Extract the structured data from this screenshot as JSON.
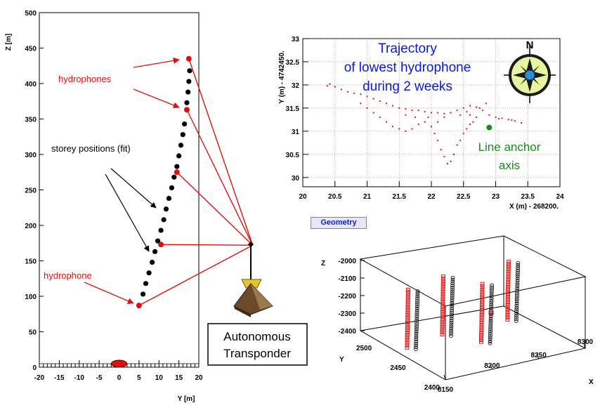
{
  "colors": {
    "red": "#e01010",
    "black": "#000000",
    "blue": "#0a18d8",
    "green": "#1a8a1a",
    "brown": "#6b4a2a"
  },
  "chart_data": [
    {
      "type": "scatter",
      "name": "line-shape",
      "xlabel": "Y [m]",
      "ylabel": "Z [m]",
      "xlim": [
        -20,
        20
      ],
      "ylim": [
        0,
        500
      ],
      "x_ticks": [
        -20,
        -15,
        -10,
        -5,
        0,
        5,
        10,
        15,
        20
      ],
      "y_ticks": [
        0,
        50,
        100,
        150,
        200,
        250,
        300,
        350,
        400,
        450,
        500
      ],
      "storey_positions": [
        [
          6.0,
          103
        ],
        [
          6.7,
          118
        ],
        [
          7.5,
          133
        ],
        [
          8.3,
          148
        ],
        [
          9.0,
          163
        ],
        [
          9.7,
          178
        ],
        [
          10.5,
          193
        ],
        [
          11.2,
          208
        ],
        [
          11.8,
          223
        ],
        [
          12.5,
          238
        ],
        [
          13.2,
          253
        ],
        [
          13.8,
          268
        ],
        [
          14.5,
          283
        ],
        [
          15.0,
          298
        ],
        [
          15.5,
          313
        ],
        [
          16.0,
          328
        ],
        [
          16.4,
          343
        ],
        [
          17.0,
          373
        ],
        [
          17.3,
          388
        ],
        [
          17.5,
          403
        ],
        [
          17.7,
          418
        ]
      ],
      "hydrophones": [
        [
          5,
          87
        ],
        [
          10.5,
          173
        ],
        [
          14.5,
          275
        ],
        [
          17,
          363
        ],
        [
          17.5,
          435
        ]
      ],
      "anchor": {
        "y": 0,
        "z": 5
      },
      "transponder": {
        "y": 33.5,
        "z": 172
      },
      "annotations": {
        "hydrophones_label": "hydrophones",
        "storey_label": "storey positions (fit)",
        "hydrophone_label": "hydrophone"
      },
      "transponder_label": [
        "Autonomous",
        "Transponder"
      ]
    },
    {
      "type": "scatter",
      "name": "trajectory",
      "xlabel": "X (m) - 268200.",
      "ylabel": "Y (m) - 4742450.",
      "xlim": [
        20,
        24
      ],
      "ylim": [
        29.8,
        33
      ],
      "x_ticks": [
        20,
        20.5,
        21,
        21.5,
        22,
        22.5,
        23,
        23.5,
        24
      ],
      "y_ticks": [
        30,
        30.5,
        31,
        31.5,
        32,
        32.5,
        33
      ],
      "title_lines": [
        "Trajectory",
        "of lowest hydrophone",
        "during 2 weeks"
      ],
      "anchor_point": {
        "x": 22.9,
        "y": 31.08
      },
      "anchor_label_lines": [
        "Line anchor",
        "axis"
      ],
      "compass_label": "N",
      "trajectory_points": [
        [
          20.38,
          31.98
        ],
        [
          20.42,
          32.02
        ],
        [
          20.5,
          31.96
        ],
        [
          20.6,
          31.9
        ],
        [
          20.7,
          31.85
        ],
        [
          20.8,
          31.82
        ],
        [
          20.9,
          31.8
        ],
        [
          21.0,
          31.75
        ],
        [
          21.1,
          31.7
        ],
        [
          21.2,
          31.65
        ],
        [
          21.3,
          31.6
        ],
        [
          21.4,
          31.55
        ],
        [
          21.5,
          31.5
        ],
        [
          21.6,
          31.48
        ],
        [
          21.7,
          31.45
        ],
        [
          21.8,
          31.45
        ],
        [
          21.9,
          31.42
        ],
        [
          22.0,
          31.4
        ],
        [
          22.1,
          31.4
        ],
        [
          22.2,
          31.38
        ],
        [
          22.3,
          31.4
        ],
        [
          22.4,
          31.45
        ],
        [
          22.5,
          31.5
        ],
        [
          22.6,
          31.55
        ],
        [
          22.7,
          31.52
        ],
        [
          22.8,
          31.45
        ],
        [
          22.9,
          31.35
        ],
        [
          23.0,
          31.3
        ],
        [
          23.1,
          31.28
        ],
        [
          23.2,
          31.25
        ],
        [
          23.3,
          31.22
        ],
        [
          23.4,
          31.18
        ],
        [
          20.9,
          31.6
        ],
        [
          21.0,
          31.5
        ],
        [
          21.1,
          31.4
        ],
        [
          21.2,
          31.3
        ],
        [
          21.3,
          31.2
        ],
        [
          21.4,
          31.1
        ],
        [
          21.5,
          31.05
        ],
        [
          21.6,
          31.0
        ],
        [
          21.7,
          31.05
        ],
        [
          21.8,
          31.15
        ],
        [
          21.9,
          31.2
        ],
        [
          22.0,
          31.1
        ],
        [
          22.05,
          30.95
        ],
        [
          22.1,
          30.8
        ],
        [
          22.15,
          30.6
        ],
        [
          22.2,
          30.45
        ],
        [
          22.25,
          30.3
        ],
        [
          22.3,
          30.35
        ],
        [
          22.35,
          30.5
        ],
        [
          22.4,
          30.7
        ],
        [
          22.45,
          30.8
        ],
        [
          22.5,
          30.95
        ],
        [
          22.55,
          31.05
        ],
        [
          22.6,
          31.15
        ],
        [
          21.6,
          31.35
        ],
        [
          21.75,
          31.3
        ],
        [
          22.6,
          31.35
        ],
        [
          22.75,
          31.5
        ],
        [
          22.85,
          31.6
        ],
        [
          22.7,
          31.3
        ],
        [
          21.95,
          31.3
        ],
        [
          22.1,
          31.2
        ],
        [
          23.05,
          31.27
        ],
        [
          23.25,
          31.24
        ],
        [
          22.65,
          31.2
        ],
        [
          22.55,
          31.42
        ],
        [
          22.45,
          31.35
        ],
        [
          22.2,
          31.3
        ]
      ]
    },
    {
      "type": "scatter",
      "name": "geometry-3d",
      "button_label": "Geometry",
      "x_ticks": [
        8150,
        8200,
        8250,
        8300
      ],
      "y_ticks": [
        2400,
        2450,
        2500
      ],
      "z_ticks": [
        -2000,
        -2100,
        -2200,
        -2300,
        -2400
      ],
      "x_label": "X",
      "y_label": "Y",
      "z_label": "Z",
      "lines": [
        {
          "x": 8160,
          "y": 2460
        },
        {
          "x": 8205,
          "y": 2470
        },
        {
          "x": 8225,
          "y": 2440
        },
        {
          "x": 8275,
          "y": 2470
        }
      ]
    }
  ]
}
